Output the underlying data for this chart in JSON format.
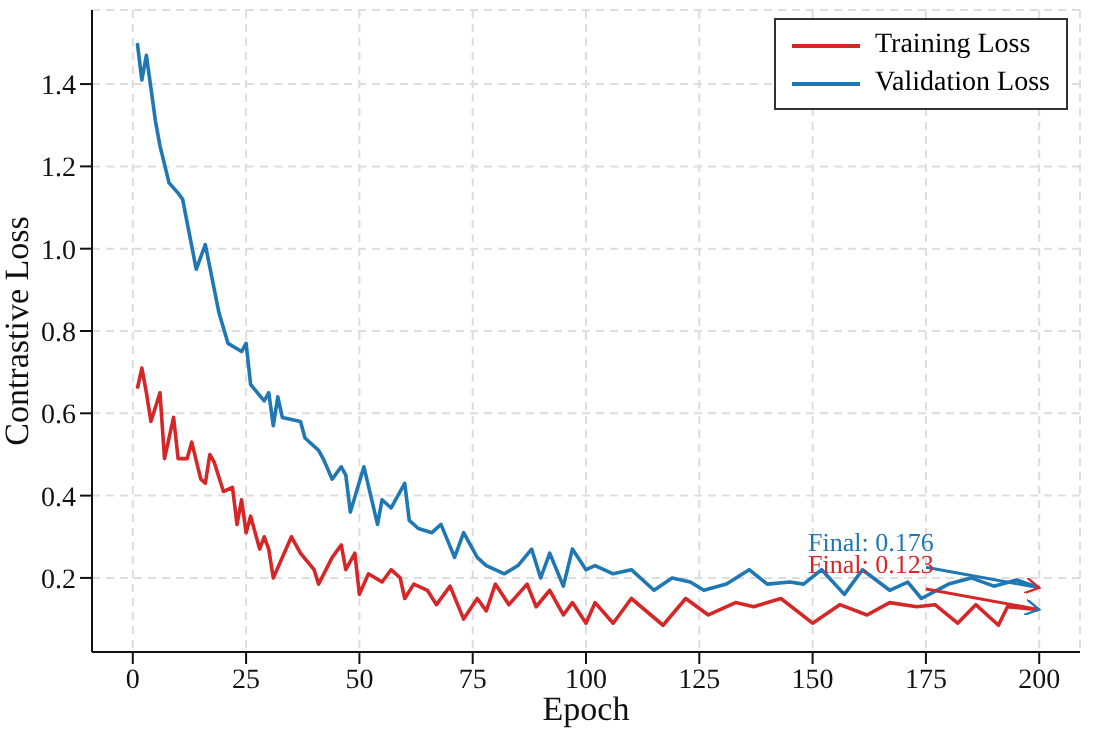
{
  "chart_data": {
    "type": "line",
    "xlabel": "Epoch",
    "ylabel": "Contrastive Loss",
    "xlim": [
      -9,
      209
    ],
    "ylim": [
      0.02,
      1.58
    ],
    "xticks": [
      0,
      25,
      50,
      75,
      100,
      125,
      150,
      175,
      200
    ],
    "yticks": [
      0.2,
      0.4,
      0.6,
      0.8,
      {
        "value": 1,
        "label": "1.0"
      },
      1.2,
      1.4
    ],
    "grid": true,
    "legend": "top right",
    "line_style": "solid",
    "series": [
      {
        "name": "Training Loss",
        "color": "#d62728",
        "x": [
          1,
          2,
          3,
          4,
          6,
          7,
          9,
          10,
          12,
          13,
          15,
          16,
          17,
          18,
          20,
          22,
          23,
          24,
          25,
          26,
          28,
          29,
          30,
          31,
          35,
          37,
          40,
          41,
          44,
          46,
          47,
          49,
          50,
          52,
          55,
          57,
          59,
          60,
          62,
          65,
          67,
          70,
          73,
          76,
          78,
          80,
          83,
          87,
          89,
          92,
          95,
          97,
          100,
          102,
          106,
          110,
          117,
          122,
          127,
          133,
          137,
          143,
          150,
          156,
          162,
          167,
          173,
          177,
          182,
          186,
          191,
          193,
          200
        ],
        "values": [
          0.66,
          0.71,
          0.65,
          0.58,
          0.65,
          0.49,
          0.59,
          0.49,
          0.49,
          0.53,
          0.44,
          0.43,
          0.5,
          0.48,
          0.41,
          0.42,
          0.33,
          0.39,
          0.31,
          0.35,
          0.27,
          0.3,
          0.27,
          0.2,
          0.3,
          0.26,
          0.22,
          0.185,
          0.25,
          0.28,
          0.22,
          0.26,
          0.16,
          0.21,
          0.19,
          0.22,
          0.2,
          0.15,
          0.185,
          0.17,
          0.135,
          0.18,
          0.1,
          0.15,
          0.12,
          0.185,
          0.135,
          0.185,
          0.13,
          0.17,
          0.11,
          0.14,
          0.09,
          0.14,
          0.09,
          0.15,
          0.085,
          0.15,
          0.11,
          0.14,
          0.13,
          0.15,
          0.09,
          0.135,
          0.11,
          0.14,
          0.13,
          0.135,
          0.09,
          0.135,
          0.085,
          0.13,
          0.123
        ]
      },
      {
        "name": "Validation Loss",
        "color": "#1f77b4",
        "x": [
          1,
          2,
          3,
          5,
          6,
          8,
          10,
          11,
          14,
          16,
          19,
          21,
          24,
          25,
          26,
          29,
          30,
          31,
          32,
          33,
          37,
          38,
          41,
          42,
          44,
          46,
          47,
          48,
          51,
          54,
          55,
          57,
          60,
          61,
          63,
          66,
          68,
          71,
          73,
          76,
          78,
          82,
          85,
          88,
          90,
          92,
          95,
          97,
          100,
          102,
          106,
          110,
          115,
          119,
          123,
          126,
          131,
          136,
          140,
          145,
          148,
          152,
          157,
          161,
          167,
          171,
          174,
          180,
          185,
          190,
          195,
          200
        ],
        "values": [
          1.5,
          1.41,
          1.47,
          1.31,
          1.25,
          1.16,
          1.135,
          1.12,
          0.95,
          1.01,
          0.845,
          0.77,
          0.75,
          0.77,
          0.67,
          0.63,
          0.65,
          0.57,
          0.64,
          0.59,
          0.58,
          0.54,
          0.51,
          0.49,
          0.44,
          0.47,
          0.45,
          0.36,
          0.47,
          0.33,
          0.39,
          0.37,
          0.43,
          0.34,
          0.32,
          0.31,
          0.33,
          0.25,
          0.31,
          0.25,
          0.23,
          0.21,
          0.23,
          0.27,
          0.2,
          0.26,
          0.18,
          0.27,
          0.22,
          0.23,
          0.21,
          0.22,
          0.17,
          0.2,
          0.19,
          0.17,
          0.185,
          0.22,
          0.185,
          0.19,
          0.185,
          0.22,
          0.16,
          0.22,
          0.17,
          0.19,
          0.15,
          0.185,
          0.2,
          0.18,
          0.195,
          0.176
        ]
      }
    ],
    "annotations": [
      {
        "text": "Final: 0.176",
        "x": 200,
        "y": 0.176
      },
      {
        "text": "Final: 0.123",
        "x": 200,
        "y": 0.123
      }
    ]
  }
}
